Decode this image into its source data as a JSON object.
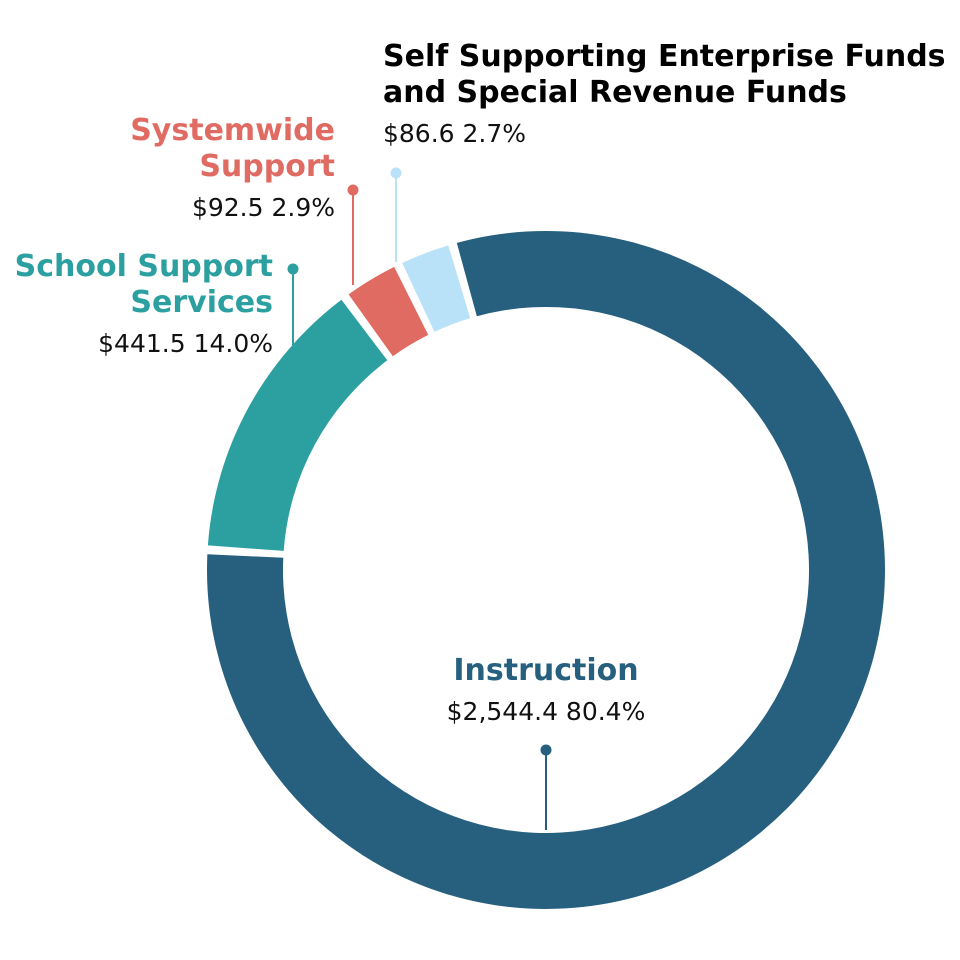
{
  "chart_data": {
    "type": "donut",
    "title": "",
    "currency_symbol": "$",
    "categories": [
      "Instruction",
      "School Support Services",
      "Systemwide Support",
      "Self Supporting Enterprise Funds and Special Revenue Funds"
    ],
    "series": [
      {
        "values": [
          2544.4,
          441.5,
          92.5,
          86.6
        ]
      }
    ],
    "slices": [
      {
        "label_lines": [
          "Instruction"
        ],
        "value": 2544.4,
        "value_text": "$2,544.4",
        "percent": 80.4,
        "percent_text": "80.4%",
        "color": "#27607f"
      },
      {
        "label_lines": [
          "School Support",
          "Services"
        ],
        "value": 441.5,
        "value_text": "$441.5",
        "percent": 14.0,
        "percent_text": "14.0%",
        "color": "#2ca0a0"
      },
      {
        "label_lines": [
          "Systemwide",
          "Support"
        ],
        "value": 92.5,
        "value_text": "$92.5",
        "percent": 2.9,
        "percent_text": "2.9%",
        "color": "#e06b63"
      },
      {
        "label_lines": [
          "Self Supporting Enterprise Funds",
          "and Special Revenue Funds"
        ],
        "value": 86.6,
        "value_text": "$86.6",
        "percent": 2.7,
        "percent_text": "2.7%",
        "color": "#b9e2f8",
        "label_color": "#000000"
      }
    ],
    "legend": "none",
    "labels": "callouts"
  }
}
